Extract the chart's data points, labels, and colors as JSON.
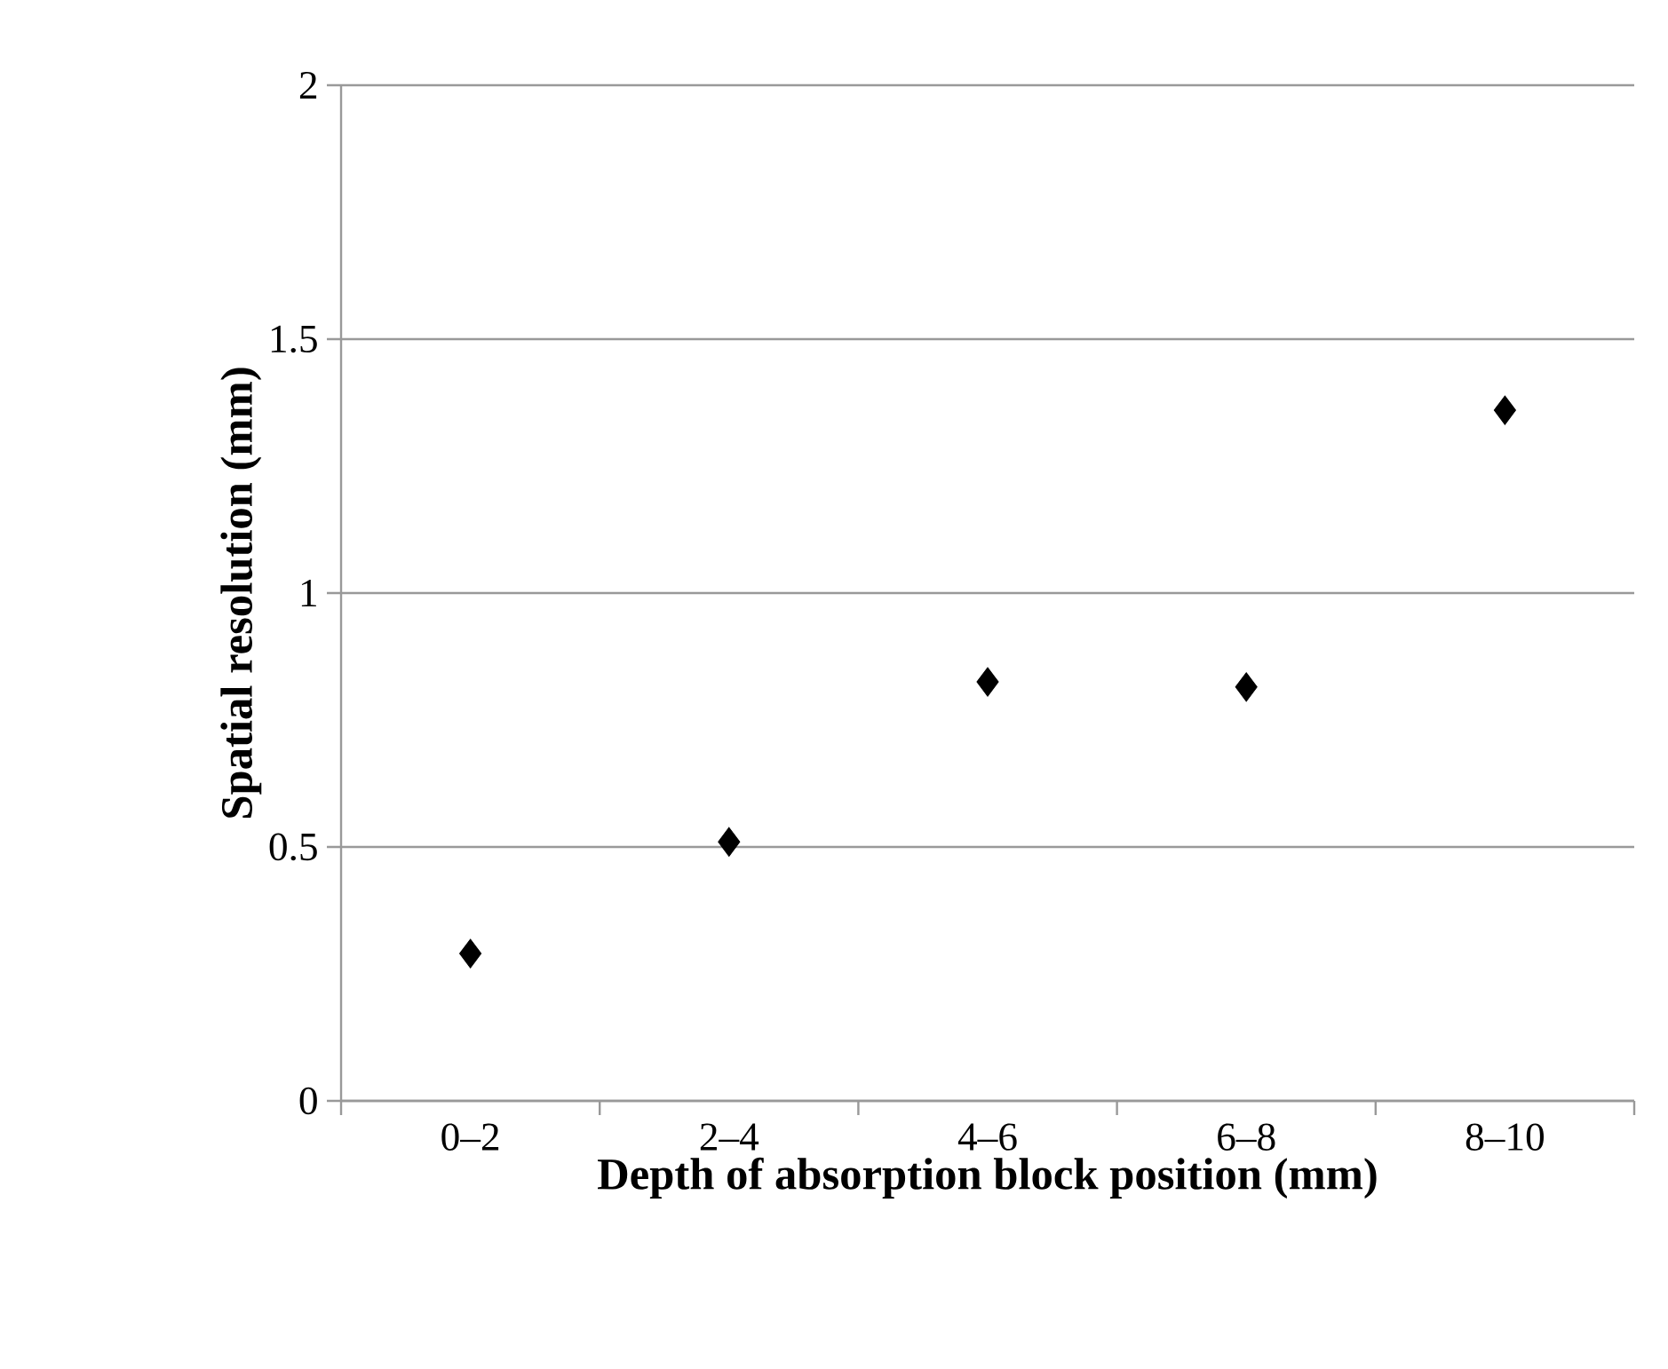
{
  "chart_data": {
    "type": "scatter",
    "xlabel": "Depth of absorption block position (mm)",
    "ylabel": "Spatial resolution (mm)",
    "categories": [
      "0–2",
      "2–4",
      "4–6",
      "6–8",
      "8–10"
    ],
    "values": [
      0.29,
      0.51,
      0.825,
      0.815,
      1.36
    ],
    "color": "#000000",
    "marker": "diamond",
    "ylim": [
      0,
      2
    ],
    "yticks": [
      0,
      0.5,
      1,
      1.5,
      2
    ],
    "grid": "y"
  }
}
